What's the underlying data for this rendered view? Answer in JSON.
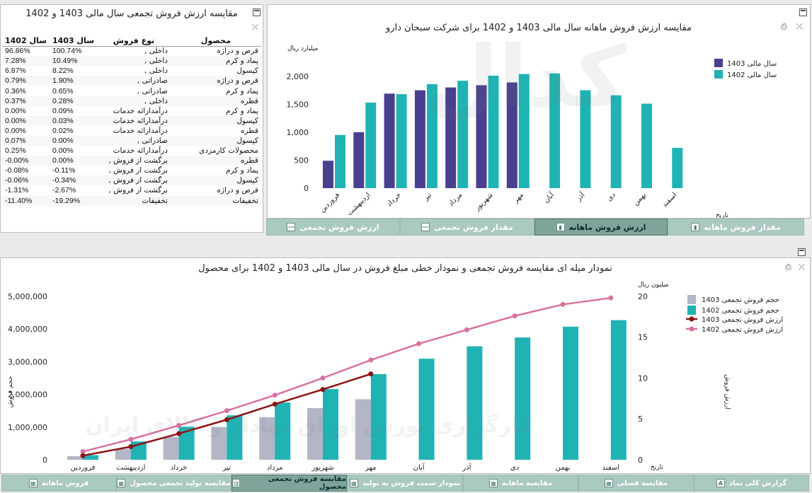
{
  "table_panel": {
    "title": "مقایسه ارزش فروش تجمعی سال مالی 1403 و 1402",
    "headers": {
      "product": "محصول",
      "sale_type": "نوع فروش",
      "year1403": "سال 1403",
      "year1402": "سال 1402"
    },
    "rows": [
      {
        "product": "قرص و دراژه",
        "type": "داخلی ,",
        "v1403": "100.74%",
        "v1402": "96.86%"
      },
      {
        "product": "پماد و کرم",
        "type": "داخلی ,",
        "v1403": "10.49%",
        "v1402": "7.28%"
      },
      {
        "product": "کپسول",
        "type": "داخلی ,",
        "v1403": "8.22%",
        "v1402": "6.87%"
      },
      {
        "product": "قرص و دراژه",
        "type": "صادراتی ,",
        "v1403": "1.90%",
        "v1402": "0.79%"
      },
      {
        "product": "پماد و کرم",
        "type": "صادراتی ,",
        "v1403": "0.65%",
        "v1402": "0.36%"
      },
      {
        "product": "قطره",
        "type": "داخلی ,",
        "v1403": "0.28%",
        "v1402": "0.37%"
      },
      {
        "product": "پماد و کرم",
        "type": "درآمدارائه خدمات",
        "v1403": "0.09%",
        "v1402": "0.00%"
      },
      {
        "product": "کپسول",
        "type": "درآمدارائه خدمات",
        "v1403": "0.03%",
        "v1402": "0.00%"
      },
      {
        "product": "قطره",
        "type": "درآمدارائه خدمات",
        "v1403": "0.02%",
        "v1402": "0.00%"
      },
      {
        "product": "کپسول",
        "type": "صادراتی ,",
        "v1403": "0.00%",
        "v1402": "0.07%"
      },
      {
        "product": "محصولات کارمزدی",
        "type": "درآمدارائه خدمات",
        "v1403": "0.00%",
        "v1402": "0.25%"
      },
      {
        "product": "قطره",
        "type": "برگشت از فروش ,",
        "v1403": "0.00%",
        "v1402": "-0.00%"
      },
      {
        "product": "پماد و کرم",
        "type": "برگشت از فروش ,",
        "v1403": "-0.11%",
        "v1402": "-0.08%"
      },
      {
        "product": "کپسول",
        "type": "برگشت از فروش ,",
        "v1403": "-0.34%",
        "v1402": "-0.06%"
      },
      {
        "product": "قرص و دراژه",
        "type": "برگشت از فروش ,",
        "v1403": "-2.67%",
        "v1402": "-1.31%"
      },
      {
        "product": "تخفیفات",
        "type": "تخفیفات",
        "v1403": "-19.29%",
        "v1402": "-11.40%"
      }
    ]
  },
  "monthly_panel": {
    "title": "مقایسه ارزش فروش ماهانه سال مالی 1403 و 1402 برای شرکت سبحان دارو",
    "tabs": [
      "مقدار فروش ماهانه",
      "ارزش فروش ماهانه",
      "مقدار فروش تجمعی",
      "ارزش فروش تجمعی"
    ],
    "active_tab": 1
  },
  "cumulative_panel": {
    "title": "نمودار میله ای مقایسه فروش تجمعی و نمودار خطی مبلغ فروش در سال مالی 1403 و 1402 برای محصول"
  },
  "bottom_tabs": {
    "labels": [
      "گزارش کلی نماد",
      "مقایسه فصلی",
      "مقایسه ماهانه",
      "نمودار سمت فروش به تولید",
      "مقایسه فروش تجمعی محصول",
      "مقایسه تولید تجمعی محصول",
      "فروش ماهانه"
    ],
    "icons": [
      "A",
      "▦",
      "▦",
      "▦",
      "▥",
      "▦",
      "▦"
    ],
    "active_tab": 4
  },
  "watermark": {
    "brand": "کدال",
    "tagline": "کارگزاری بورس اوراق بهادار و کالای ایران"
  },
  "colors": {
    "c1403": "#4a3f8f",
    "c1402": "#20b3b3",
    "gray1403": "#b3b6c6",
    "line1403": "#8b1414",
    "line1402": "#d873a0",
    "tab": "#aac9c0",
    "tab_active": "#7fa59b"
  },
  "chart_data": [
    {
      "type": "bar",
      "title": "مقایسه ارزش فروش ماهانه سال مالی 1403 و 1402 برای شرکت سبحان دارو",
      "ylabel": "میلیارد ریال",
      "xlabel": "تاریخ",
      "categories": [
        "فروردین",
        "اردیبهشت",
        "خرداد",
        "تیر",
        "مرداد",
        "شهریور",
        "مهر",
        "آبان",
        "آذر",
        "دی",
        "بهمن",
        "اسفند"
      ],
      "ylim": [
        0,
        2200
      ],
      "yticks": [
        0,
        500,
        1000,
        1500,
        2000
      ],
      "ytick_labels": [
        "0",
        "500",
        "1,000",
        "1,500",
        "2,000"
      ],
      "series": [
        {
          "name": "سال مالی 1403",
          "values": [
            490,
            1000,
            1690,
            1750,
            1800,
            1840,
            1890,
            null,
            null,
            null,
            null,
            null
          ]
        },
        {
          "name": "سال مالی 1402",
          "values": [
            950,
            1530,
            1680,
            1860,
            1920,
            2010,
            2040,
            2050,
            1750,
            1660,
            1510,
            720
          ]
        }
      ],
      "grid": false,
      "legend": "top-right"
    },
    {
      "type": "bar",
      "title": "نمودار میله ای مقایسه فروش تجمعی و نمودار خطی مبلغ فروش در سال مالی 1403 و 1402 برای محصول",
      "ylabel": "حجم فروش",
      "y2label": "ارزش فروش",
      "y2unit": "میلیون ریال",
      "xlabel": "تاریخ",
      "categories": [
        "فروردین",
        "اردیبهشت",
        "خرداد",
        "تیر",
        "مرداد",
        "شهریور",
        "مهر",
        "آبان",
        "آذر",
        "دی",
        "بهمن",
        "اسفند"
      ],
      "ylim": [
        0,
        5300000
      ],
      "yticks": [
        0,
        1000000,
        2000000,
        3000000,
        4000000,
        5000000
      ],
      "ytick_labels": [
        "0",
        "1,000,000",
        "2,000,000",
        "3,000,000",
        "4,000,000",
        "5,000,000"
      ],
      "y2lim": [
        0,
        21.2
      ],
      "y2ticks": [
        0,
        5,
        10,
        15,
        20
      ],
      "series": [
        {
          "name": "حجم فروش تجمعی 1403",
          "kind": "bar",
          "values": [
            110000,
            330000,
            700000,
            1000000,
            1300000,
            1580000,
            1850000,
            null,
            null,
            null,
            null,
            null
          ]
        },
        {
          "name": "حجم فروش تجمعی 1402",
          "kind": "bar",
          "values": [
            140000,
            560000,
            1010000,
            1360000,
            1750000,
            2160000,
            2620000,
            3090000,
            3470000,
            3740000,
            4070000,
            4270000
          ]
        },
        {
          "name": "ارزش فروش تجمعی 1403",
          "kind": "line",
          "axis": "y2",
          "values": [
            0.5,
            1.6,
            3.2,
            4.9,
            6.8,
            8.6,
            10.5,
            null,
            null,
            null,
            null,
            null
          ]
        },
        {
          "name": "ارزش فروش تجمعی 1402",
          "kind": "line",
          "axis": "y2",
          "values": [
            1.0,
            2.5,
            4.2,
            6.0,
            7.9,
            10.0,
            12.2,
            14.2,
            15.9,
            17.6,
            19.0,
            19.8
          ]
        }
      ],
      "grid": false,
      "legend": "top-right"
    }
  ]
}
